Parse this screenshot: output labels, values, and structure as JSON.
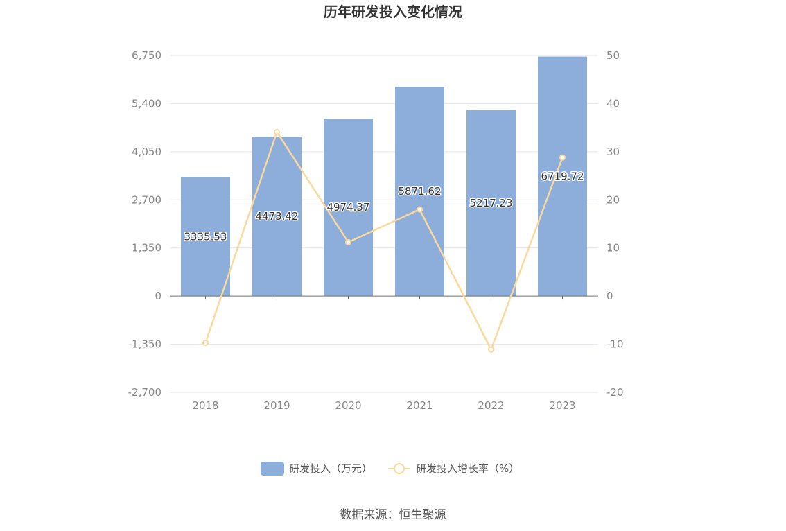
{
  "chart_data": {
    "type": "bar",
    "title": "历年研发投入变化情况",
    "categories": [
      "2018",
      "2019",
      "2020",
      "2021",
      "2022",
      "2023"
    ],
    "series": [
      {
        "name": "研发投入（万元）",
        "type": "bar",
        "axis": "left",
        "values": [
          3335.53,
          4473.42,
          4974.37,
          5871.62,
          5217.23,
          6719.72
        ],
        "labels": [
          "3335.53",
          "4473.42",
          "4974.37",
          "5871.62",
          "5217.23",
          "6719.72"
        ],
        "color": "#8daddb"
      },
      {
        "name": "研发投入增长率（%）",
        "type": "line",
        "axis": "right",
        "values": [
          -9.7,
          34.1,
          11.2,
          18.0,
          -11.1,
          28.8
        ],
        "color": "#fbd89c"
      }
    ],
    "y_left": {
      "ylim": [
        -2700,
        6750
      ],
      "ticks": [
        -2700,
        -1350,
        0,
        1350,
        2700,
        4050,
        5400,
        6750
      ],
      "tick_labels": [
        "-2,700",
        "-1,350",
        "0",
        "1,350",
        "2,700",
        "4,050",
        "5,400",
        "6,750"
      ]
    },
    "y_right": {
      "ylim": [
        -20,
        50
      ],
      "ticks": [
        -20,
        -10,
        0,
        10,
        20,
        30,
        40,
        50
      ],
      "tick_labels": [
        "-20",
        "-10",
        "0",
        "10",
        "20",
        "30",
        "40",
        "50"
      ]
    },
    "grid": true,
    "legend_position": "bottom",
    "source": "数据来源：恒生聚源"
  }
}
